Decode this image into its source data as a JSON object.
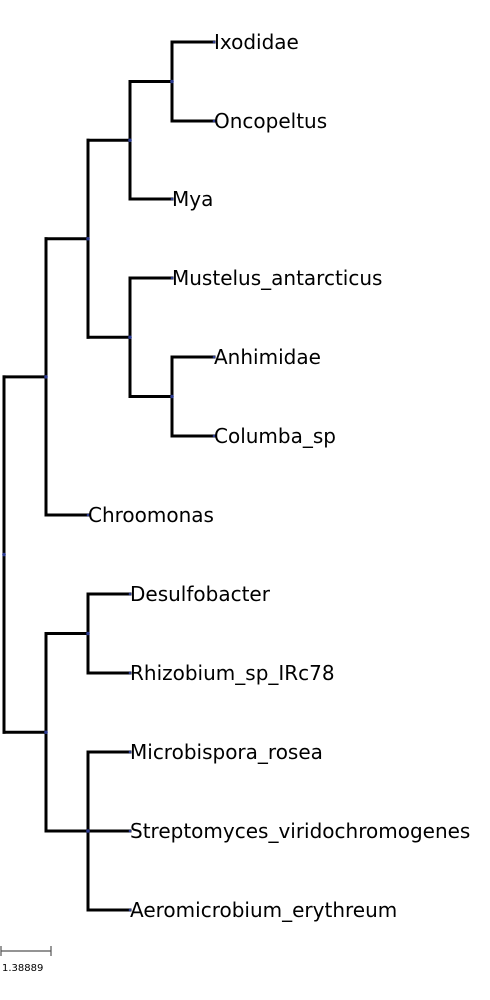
{
  "tree": {
    "colors": {
      "branch": "#000000",
      "node_dot": "#2b3a8f",
      "scale_bar": "#555555"
    },
    "leaves": [
      {
        "id": "ixodidae",
        "label": "Ixodidae"
      },
      {
        "id": "oncopeltus",
        "label": "Oncopeltus"
      },
      {
        "id": "mya",
        "label": "Mya"
      },
      {
        "id": "mustelus",
        "label": "Mustelus_antarcticus"
      },
      {
        "id": "anhimidae",
        "label": "Anhimidae"
      },
      {
        "id": "columba",
        "label": "Columba_sp"
      },
      {
        "id": "chroomonas",
        "label": "Chroomonas"
      },
      {
        "id": "desulfobacter",
        "label": "Desulfobacter"
      },
      {
        "id": "rhizobium",
        "label": "Rhizobium_sp_IRc78"
      },
      {
        "id": "microbispora",
        "label": "Microbispora_rosea"
      },
      {
        "id": "streptomyces",
        "label": "Streptomyces_viridochromogenes"
      },
      {
        "id": "aeromicrobium",
        "label": "Aeromicrobium_erythreum"
      }
    ],
    "scale_bar": {
      "label": "1.38889"
    }
  }
}
